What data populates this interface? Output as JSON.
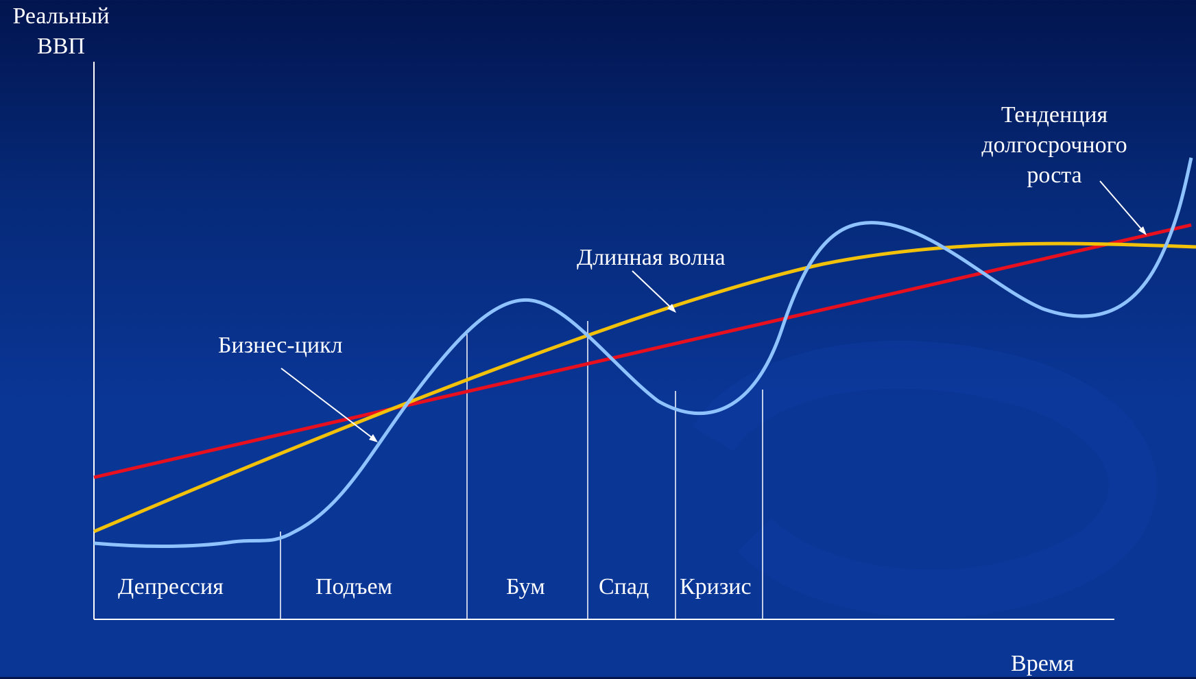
{
  "axes": {
    "y_label_line1": "Реальный",
    "y_label_line2": "ВВП",
    "x_label": "Время"
  },
  "curves": {
    "trend_label_line1": "Тенденция",
    "trend_label_line2": "долгосрочного",
    "trend_label_line3": "роста",
    "long_wave_label": "Длинная волна",
    "business_cycle_label": "Бизнес-цикл"
  },
  "phases": [
    {
      "label": "Депрессия"
    },
    {
      "label": "Подъем"
    },
    {
      "label": "Бум"
    },
    {
      "label": "Спад"
    },
    {
      "label": "Кризис"
    }
  ],
  "colors": {
    "trend_line": "#e8101e",
    "long_wave": "#f2c20a",
    "business_cycle": "#8fc3ff",
    "axis": "#ffffff"
  }
}
